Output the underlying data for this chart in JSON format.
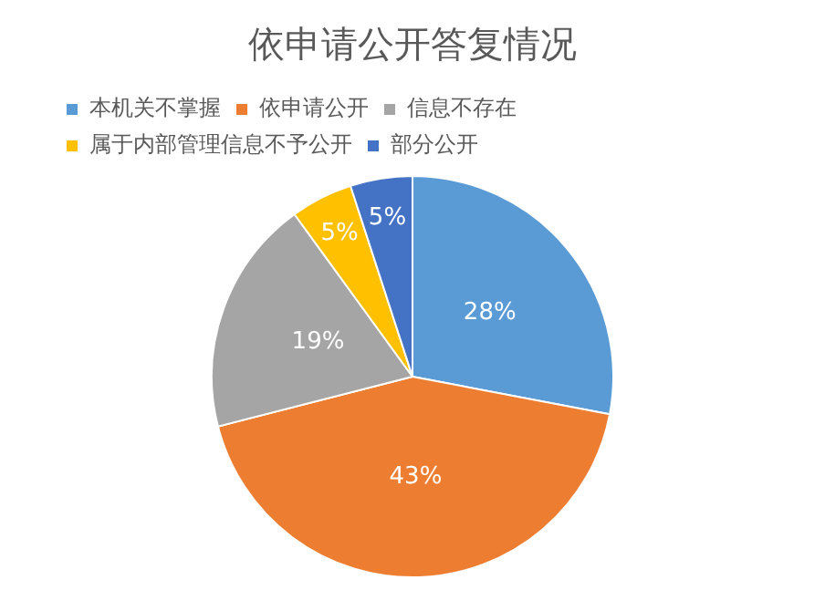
{
  "chart_data": {
    "type": "pie",
    "title": "依申请公开答复情况",
    "categories": [
      "本机关不掌握",
      "依申请公开",
      "信息不存在",
      "属于内部管理信息不予公开",
      "部分公开"
    ],
    "values": [
      28,
      43,
      19,
      5,
      5
    ],
    "colors": [
      "#5b9bd5",
      "#ed7d31",
      "#a5a5a5",
      "#ffc000",
      "#4472c4"
    ],
    "value_labels": [
      "28%",
      "43%",
      "19%",
      "5%",
      "5%"
    ],
    "legend": "top"
  }
}
